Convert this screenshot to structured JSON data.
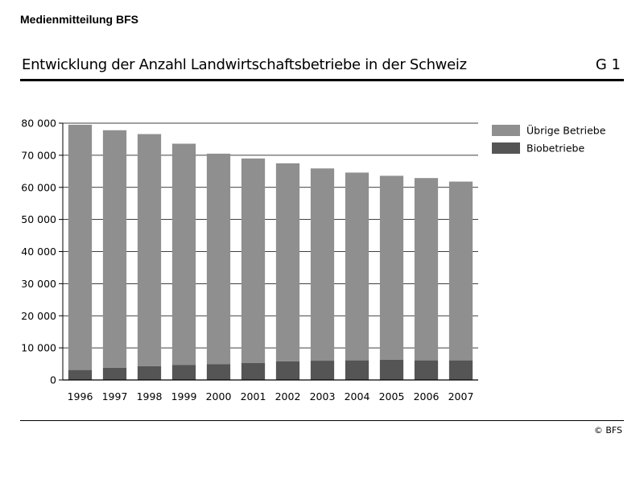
{
  "header": {
    "press_label": "Medienmitteilung BFS"
  },
  "chart_header": {
    "title": "Entwicklung der Anzahl Landwirtschaftsbetriebe in der Schweiz",
    "number": "G 1"
  },
  "footer": {
    "copyright": "© BFS"
  },
  "colors": {
    "other_farms": "#8f8f8f",
    "organic_farms": "#555555",
    "axis": "#000000",
    "grid": "#000000"
  },
  "chart_data": {
    "type": "bar",
    "stacked": true,
    "title": "Entwicklung der Anzahl Landwirtschaftsbetriebe in der Schweiz",
    "xlabel": "",
    "ylabel": "",
    "categories": [
      "1996",
      "1997",
      "1998",
      "1999",
      "2000",
      "2001",
      "2002",
      "2003",
      "2004",
      "2005",
      "2006",
      "2007"
    ],
    "ylim": [
      0,
      80000
    ],
    "yticks": [
      0,
      10000,
      20000,
      30000,
      40000,
      50000,
      60000,
      70000,
      80000
    ],
    "ytick_labels": [
      "0",
      "10 000",
      "20 000",
      "30 000",
      "40 000",
      "50 000",
      "60 000",
      "70 000",
      "80 000"
    ],
    "grid": true,
    "legend_position": "right",
    "series": [
      {
        "name": "Biobetriebe",
        "color": "#555555",
        "values": [
          3100,
          3800,
          4300,
          4700,
          4900,
          5300,
          5800,
          6000,
          6100,
          6300,
          6100,
          6100
        ]
      },
      {
        "name": "Übrige Betriebe",
        "color": "#8f8f8f",
        "values": [
          76400,
          74000,
          72300,
          68900,
          65600,
          63700,
          61700,
          59900,
          58500,
          57300,
          56800,
          55700
        ]
      }
    ],
    "legend_order": [
      "Übrige Betriebe",
      "Biobetriebe"
    ]
  }
}
